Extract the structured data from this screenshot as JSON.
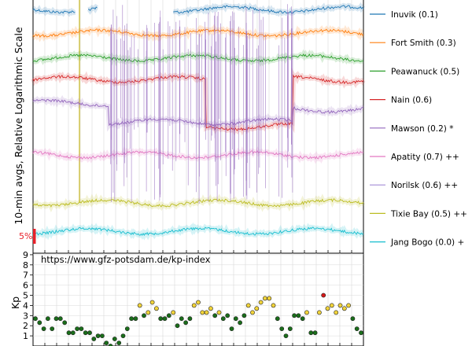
{
  "chart_data": [
    {
      "type": "line",
      "ylabel": "10-min avgs, Relative Logarithmic Scale",
      "scale_bar_label": "5%",
      "colors": {
        "scale_bar": "#e8202a",
        "grid": "#d8d8d8",
        "yellow_marker": "#c8b820"
      },
      "series": [
        {
          "name": "Inuvik (0.1)",
          "color": "#1f77b4"
        },
        {
          "name": "Fort Smith (0.3)",
          "color": "#ff7f0e"
        },
        {
          "name": "Peawanuck (0.5)",
          "color": "#2ca02c"
        },
        {
          "name": "Nain (0.6)",
          "color": "#d62728"
        },
        {
          "name": "Mawson (0.2) *",
          "color": "#9467bd"
        },
        {
          "name": "Apatity (0.7) ++",
          "color": "#e377c2"
        },
        {
          "name": "Norilsk (0.6) ++",
          "color": "#a48bd6"
        },
        {
          "name": "Tixie Bay (0.5) ++",
          "color": "#bcbd22"
        },
        {
          "name": "Jang Bogo (0.0) +",
          "color": "#17becf"
        }
      ]
    },
    {
      "type": "scatter",
      "ylabel": "Kp",
      "url_label": "https://www.gfz-potsdam.de/kp-index",
      "yticks": [
        "1",
        "2",
        "3",
        "4",
        "5",
        "6",
        "7",
        "8",
        "9"
      ],
      "ylim": [
        0,
        9
      ],
      "colors": {
        "low": "#1a6e1a",
        "mid": "#f2d43a",
        "high": "#d61818"
      },
      "values": [
        2.7,
        2.3,
        1.7,
        2.7,
        1.7,
        2.7,
        2.7,
        2.3,
        1.3,
        1.3,
        1.7,
        1.7,
        1.3,
        1.3,
        0.7,
        1.0,
        1.0,
        0.3,
        0.0,
        0.7,
        0.3,
        1.0,
        1.7,
        2.7,
        2.7,
        4.0,
        3.0,
        3.3,
        4.3,
        3.7,
        2.7,
        2.7,
        3.0,
        3.3,
        2.0,
        2.7,
        2.3,
        2.7,
        4.0,
        4.3,
        3.3,
        3.3,
        3.7,
        3.0,
        3.3,
        2.7,
        3.0,
        1.7,
        2.7,
        2.3,
        3.0,
        4.0,
        3.3,
        3.7,
        4.3,
        4.7,
        4.7,
        4.0,
        2.7,
        1.7,
        1.0,
        1.7,
        3.0,
        3.0,
        2.7,
        3.3,
        1.3,
        1.3,
        3.3,
        5.0,
        3.7,
        4.0,
        3.3,
        4.0,
        3.7,
        4.0,
        2.7,
        1.7,
        1.3
      ]
    }
  ]
}
